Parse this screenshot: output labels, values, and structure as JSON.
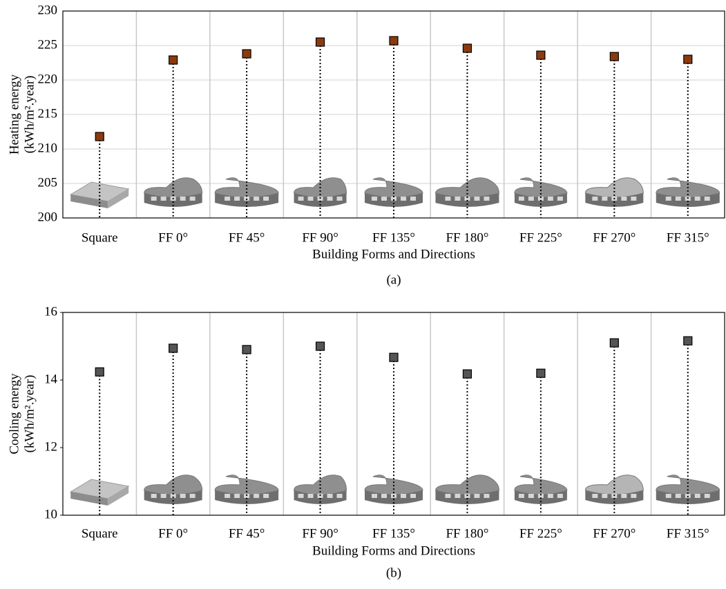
{
  "chart_data": [
    {
      "type": "scatter",
      "ylabel": [
        "Heating energy",
        "(kWh/m².year)"
      ],
      "xlabel": "Building Forms and Directions",
      "caption": "(a)",
      "categories": [
        "Square",
        "FF 0°",
        "FF 45°",
        "FF 90°",
        "FF 135°",
        "FF 180°",
        "FF 225°",
        "FF 270°",
        "FF 315°"
      ],
      "values": [
        211.8,
        222.9,
        223.8,
        225.5,
        225.7,
        224.6,
        223.6,
        223.4,
        223.0
      ],
      "color": "#8b3a10",
      "ylim": [
        200,
        230
      ],
      "yticks": [
        200,
        205,
        210,
        215,
        220,
        225,
        230
      ],
      "ygrid": true,
      "xgrid": true
    },
    {
      "type": "scatter",
      "ylabel": [
        "Cooling energy",
        "(kWh/m².year)"
      ],
      "xlabel": "Building Forms and Directions",
      "caption": "(b)",
      "categories": [
        "Square",
        "FF 0°",
        "FF 45°",
        "FF 90°",
        "FF 135°",
        "FF 180°",
        "FF 225°",
        "FF 270°",
        "FF 315°"
      ],
      "values": [
        14.24,
        14.94,
        14.9,
        15.0,
        14.67,
        14.18,
        14.2,
        15.1,
        15.16
      ],
      "color": "#555555",
      "ylim": [
        10,
        16
      ],
      "yticks": [
        10,
        12,
        14,
        16
      ],
      "ygrid": false,
      "xgrid": true
    }
  ]
}
